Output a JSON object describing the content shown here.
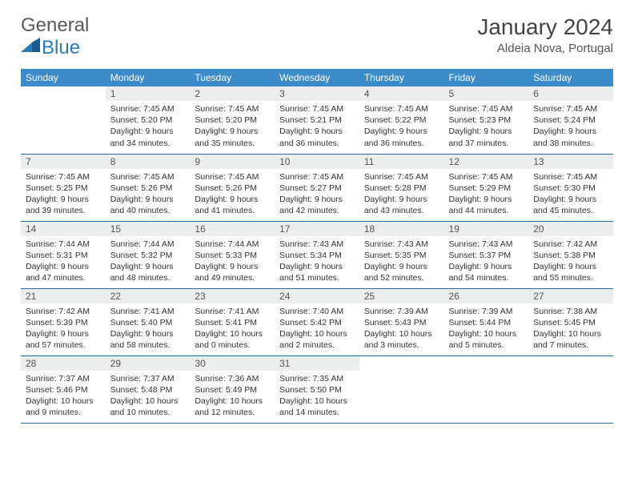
{
  "logo": {
    "general": "General",
    "blue": "Blue"
  },
  "header": {
    "month": "January 2024",
    "location": "Aldeia Nova, Portugal"
  },
  "colors": {
    "header_bg": "#3b8bc9",
    "header_text": "#ffffff",
    "daynum_bg": "#eceded",
    "border": "#2a6aa3",
    "logo_gray": "#5a5a5a",
    "logo_blue": "#2a7ab8"
  },
  "weekdays": [
    "Sunday",
    "Monday",
    "Tuesday",
    "Wednesday",
    "Thursday",
    "Friday",
    "Saturday"
  ],
  "start_offset": 1,
  "days": [
    {
      "n": 1,
      "sr": "7:45 AM",
      "ss": "5:20 PM",
      "dl": "9 hours and 34 minutes."
    },
    {
      "n": 2,
      "sr": "7:45 AM",
      "ss": "5:20 PM",
      "dl": "9 hours and 35 minutes."
    },
    {
      "n": 3,
      "sr": "7:45 AM",
      "ss": "5:21 PM",
      "dl": "9 hours and 36 minutes."
    },
    {
      "n": 4,
      "sr": "7:45 AM",
      "ss": "5:22 PM",
      "dl": "9 hours and 36 minutes."
    },
    {
      "n": 5,
      "sr": "7:45 AM",
      "ss": "5:23 PM",
      "dl": "9 hours and 37 minutes."
    },
    {
      "n": 6,
      "sr": "7:45 AM",
      "ss": "5:24 PM",
      "dl": "9 hours and 38 minutes."
    },
    {
      "n": 7,
      "sr": "7:45 AM",
      "ss": "5:25 PM",
      "dl": "9 hours and 39 minutes."
    },
    {
      "n": 8,
      "sr": "7:45 AM",
      "ss": "5:26 PM",
      "dl": "9 hours and 40 minutes."
    },
    {
      "n": 9,
      "sr": "7:45 AM",
      "ss": "5:26 PM",
      "dl": "9 hours and 41 minutes."
    },
    {
      "n": 10,
      "sr": "7:45 AM",
      "ss": "5:27 PM",
      "dl": "9 hours and 42 minutes."
    },
    {
      "n": 11,
      "sr": "7:45 AM",
      "ss": "5:28 PM",
      "dl": "9 hours and 43 minutes."
    },
    {
      "n": 12,
      "sr": "7:45 AM",
      "ss": "5:29 PM",
      "dl": "9 hours and 44 minutes."
    },
    {
      "n": 13,
      "sr": "7:45 AM",
      "ss": "5:30 PM",
      "dl": "9 hours and 45 minutes."
    },
    {
      "n": 14,
      "sr": "7:44 AM",
      "ss": "5:31 PM",
      "dl": "9 hours and 47 minutes."
    },
    {
      "n": 15,
      "sr": "7:44 AM",
      "ss": "5:32 PM",
      "dl": "9 hours and 48 minutes."
    },
    {
      "n": 16,
      "sr": "7:44 AM",
      "ss": "5:33 PM",
      "dl": "9 hours and 49 minutes."
    },
    {
      "n": 17,
      "sr": "7:43 AM",
      "ss": "5:34 PM",
      "dl": "9 hours and 51 minutes."
    },
    {
      "n": 18,
      "sr": "7:43 AM",
      "ss": "5:35 PM",
      "dl": "9 hours and 52 minutes."
    },
    {
      "n": 19,
      "sr": "7:43 AM",
      "ss": "5:37 PM",
      "dl": "9 hours and 54 minutes."
    },
    {
      "n": 20,
      "sr": "7:42 AM",
      "ss": "5:38 PM",
      "dl": "9 hours and 55 minutes."
    },
    {
      "n": 21,
      "sr": "7:42 AM",
      "ss": "5:39 PM",
      "dl": "9 hours and 57 minutes."
    },
    {
      "n": 22,
      "sr": "7:41 AM",
      "ss": "5:40 PM",
      "dl": "9 hours and 58 minutes."
    },
    {
      "n": 23,
      "sr": "7:41 AM",
      "ss": "5:41 PM",
      "dl": "10 hours and 0 minutes."
    },
    {
      "n": 24,
      "sr": "7:40 AM",
      "ss": "5:42 PM",
      "dl": "10 hours and 2 minutes."
    },
    {
      "n": 25,
      "sr": "7:39 AM",
      "ss": "5:43 PM",
      "dl": "10 hours and 3 minutes."
    },
    {
      "n": 26,
      "sr": "7:39 AM",
      "ss": "5:44 PM",
      "dl": "10 hours and 5 minutes."
    },
    {
      "n": 27,
      "sr": "7:38 AM",
      "ss": "5:45 PM",
      "dl": "10 hours and 7 minutes."
    },
    {
      "n": 28,
      "sr": "7:37 AM",
      "ss": "5:46 PM",
      "dl": "10 hours and 9 minutes."
    },
    {
      "n": 29,
      "sr": "7:37 AM",
      "ss": "5:48 PM",
      "dl": "10 hours and 10 minutes."
    },
    {
      "n": 30,
      "sr": "7:36 AM",
      "ss": "5:49 PM",
      "dl": "10 hours and 12 minutes."
    },
    {
      "n": 31,
      "sr": "7:35 AM",
      "ss": "5:50 PM",
      "dl": "10 hours and 14 minutes."
    }
  ],
  "labels": {
    "sunrise": "Sunrise:",
    "sunset": "Sunset:",
    "daylight": "Daylight:"
  }
}
